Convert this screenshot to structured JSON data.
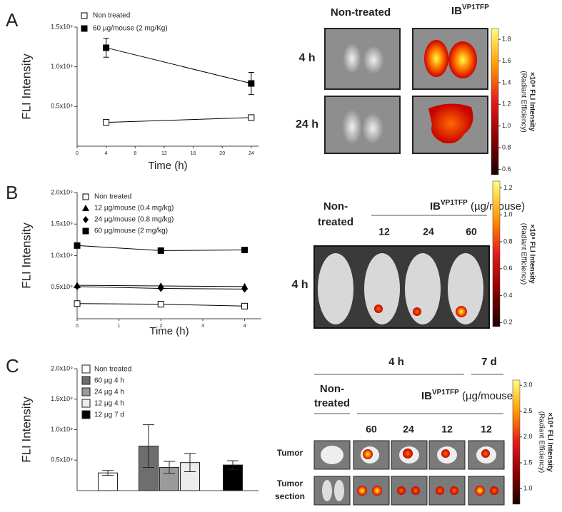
{
  "panel_labels": [
    "A",
    "B",
    "C"
  ],
  "chart_data": [
    {
      "type": "line",
      "y_label": "FLI Intensity",
      "x_label": "Time (h)",
      "x": [
        4,
        24
      ],
      "xlim": [
        0,
        25
      ],
      "xticks": [
        0,
        4,
        8,
        12,
        16,
        20,
        24
      ],
      "ylim": [
        0,
        1500000000
      ],
      "yticks": [
        {
          "value": 500000000,
          "label": "0.5x10⁹"
        },
        {
          "value": 1000000000,
          "label": "1.0x10⁹"
        },
        {
          "value": 1500000000,
          "label": "1.5x10⁹"
        }
      ],
      "series": [
        {
          "name": "Non treated",
          "color": "#000000",
          "marker": "square-open",
          "values": [
            300000000,
            360000000
          ],
          "errors": [
            20000000,
            20000000
          ]
        },
        {
          "name": "60 µg/mouse (2 mg/Kg)",
          "color": "#000000",
          "marker": "square",
          "values": [
            1240000000,
            790000000
          ],
          "errors": [
            120000000,
            140000000
          ]
        }
      ]
    },
    {
      "type": "line",
      "y_label": "FLI Intensity",
      "x_label": "Time (h)",
      "x": [
        0,
        2,
        4
      ],
      "xlim": [
        0,
        4.4
      ],
      "xticks": [
        0,
        1,
        2,
        3,
        4
      ],
      "ylim": [
        0,
        2000000000
      ],
      "yticks": [
        {
          "value": 500000000,
          "label": "0.5x10⁹"
        },
        {
          "value": 1000000000,
          "label": "1.0x10⁹"
        },
        {
          "value": 1500000000,
          "label": "1.5x10⁹"
        },
        {
          "value": 2000000000,
          "label": "2.0x10⁹"
        }
      ],
      "series": [
        {
          "name": "Non treated",
          "color": "#000000",
          "marker": "square-open",
          "values": [
            240000000,
            230000000,
            200000000
          ]
        },
        {
          "name": "12 µg/mouse (0.4 mg/kg)",
          "color": "#000000",
          "marker": "triangle",
          "values": [
            530000000,
            520000000,
            510000000
          ]
        },
        {
          "name": "24 µg/mouse (0.8 mg/kg)",
          "color": "#000000",
          "marker": "diamond",
          "values": [
            510000000,
            480000000,
            470000000
          ]
        },
        {
          "name": "60 µg/mouse (2 mg/kg)",
          "color": "#000000",
          "marker": "square",
          "values": [
            1160000000,
            1080000000,
            1090000000
          ]
        }
      ]
    },
    {
      "type": "bar",
      "y_label": "FLI Intensity",
      "ylim": [
        0,
        2000000000
      ],
      "yticks": [
        {
          "value": 500000000,
          "label": "0.5x10⁹"
        },
        {
          "value": 1000000000,
          "label": "1.0x10⁹"
        },
        {
          "value": 1500000000,
          "label": "1.5x10⁹"
        },
        {
          "value": 2000000000,
          "label": "2.0x10⁹"
        }
      ],
      "series": [
        {
          "name": "Non treated",
          "color": "#ffffff",
          "values": [
            290000000
          ],
          "errors": [
            40000000
          ]
        },
        {
          "name": "60 µg 4 h",
          "color": "#6e6e6e",
          "values": [
            730000000
          ],
          "errors": [
            350000000
          ]
        },
        {
          "name": "24 µg 4 h",
          "color": "#9a9a9a",
          "values": [
            380000000
          ],
          "errors": [
            100000000
          ]
        },
        {
          "name": "12 µg 4 h",
          "color": "#ececec",
          "values": [
            460000000
          ],
          "errors": [
            150000000
          ]
        },
        {
          "name": "12 µg 7 d",
          "color": "#000000",
          "values": [
            420000000
          ],
          "errors": [
            70000000
          ]
        }
      ]
    }
  ],
  "images": [
    {
      "non_treated": [
        "Non-treated"
      ],
      "ib": "IB",
      "ib_sup": "VP1TFP",
      "rows": [
        [
          "4 h"
        ],
        [
          "24 h"
        ]
      ],
      "colorbar": {
        "range": [
          0.55,
          1.9
        ],
        "ticks": [
          0.6,
          0.8,
          {
            "value": 1,
            "label": "1.0"
          },
          1.2,
          1.4,
          1.6,
          1.8
        ],
        "label": "×10⁸ FLI Intensity",
        "sublabel": "(Radiant Efficiency)"
      }
    },
    {
      "non_treated": [
        "Non-",
        "treated"
      ],
      "ib": "IB",
      "ib_sup": "VP1TFP",
      "ib_unit": " (µg/mouse)",
      "doses": [
        12,
        24,
        60
      ],
      "rows": [
        [
          "4 h"
        ]
      ],
      "colorbar": {
        "range": [
          0.17,
          1.25
        ],
        "ticks": [
          0.2,
          0.4,
          0.6,
          0.8,
          {
            "value": 1,
            "label": "1.0"
          },
          1.2
        ],
        "label": "×10⁸ FLI Intensity",
        "sublabel": "(Radiant Efficiency)"
      }
    },
    {
      "times": [
        "4 h",
        "7 d"
      ],
      "non_treated": [
        "Non-",
        "treated"
      ],
      "ib": "IB",
      "ib_sup": "VP1TFP",
      "ib_unit": " (µg/mouse)",
      "doses": [
        60,
        24,
        12,
        12
      ],
      "rows": [
        [
          "Tumor"
        ],
        [
          "Tumor",
          "section"
        ]
      ],
      "colorbar": {
        "range": [
          0.7,
          3.1
        ],
        "ticks": [
          {
            "value": 1,
            "label": "1.0"
          },
          1.5,
          {
            "value": 2,
            "label": "2.0"
          },
          2.5,
          {
            "value": 3,
            "label": "3.0"
          }
        ],
        "label": "×10⁸ FLI Intensity",
        "sublabel": "(Radiant Efficiency)"
      }
    }
  ]
}
